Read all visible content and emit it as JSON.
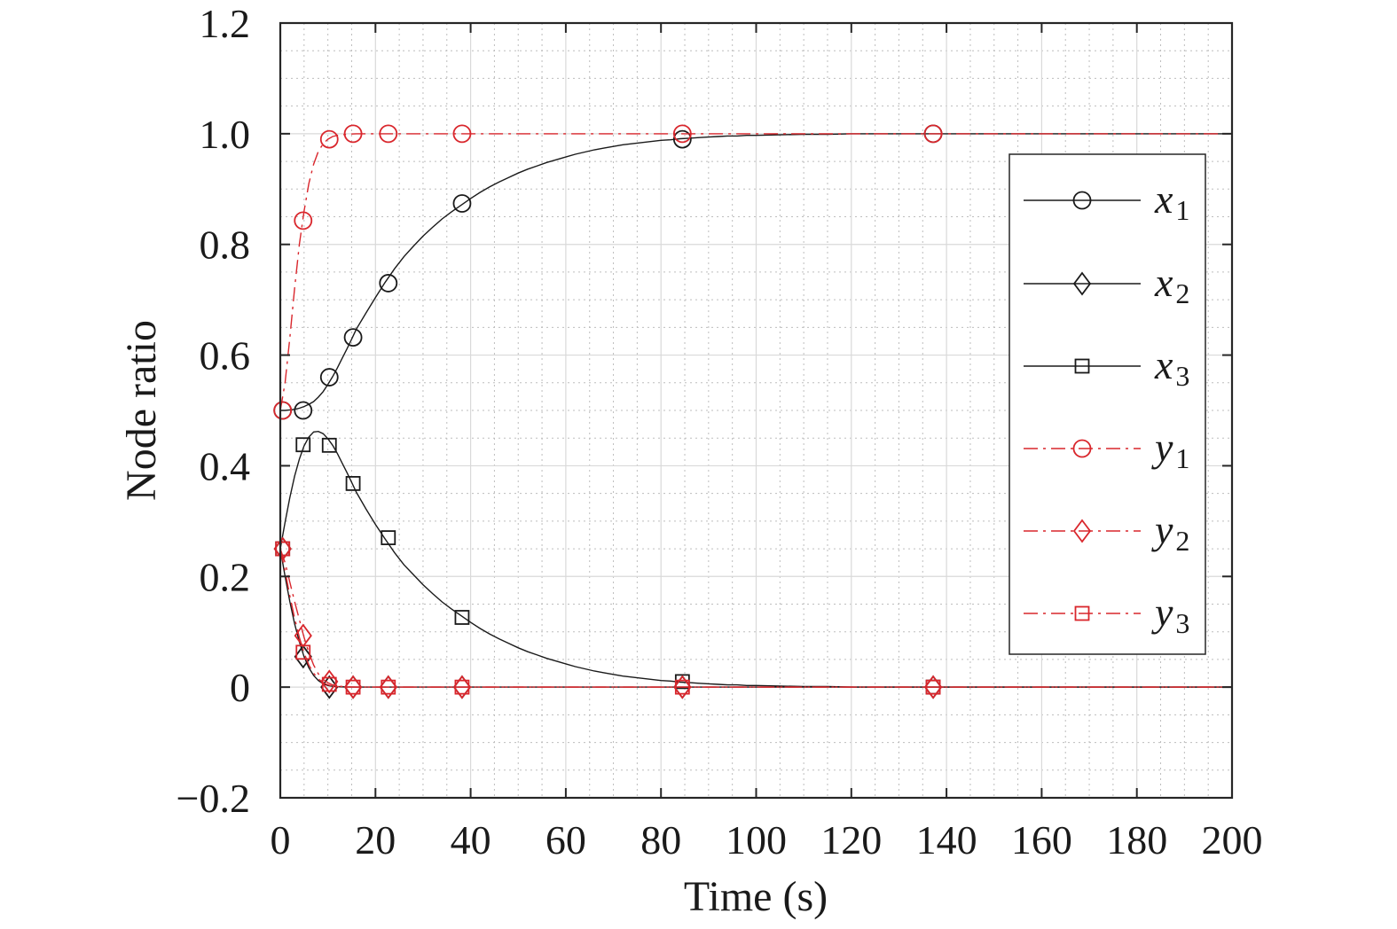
{
  "chart_data": {
    "type": "line",
    "title": "",
    "xlabel": "Time (s)",
    "ylabel": "Node ratio",
    "xlim": [
      0,
      200
    ],
    "ylim": [
      -0.2,
      1.2
    ],
    "xticks": [
      0,
      20,
      40,
      60,
      80,
      100,
      120,
      140,
      160,
      180,
      200
    ],
    "yticks": [
      -0.2,
      0,
      0.2,
      0.4,
      0.6,
      0.8,
      1.0,
      1.2
    ],
    "ytick_labels": [
      "−0.2",
      "0",
      "0.2",
      "0.4",
      "0.6",
      "0.8",
      "1.0",
      "1.2"
    ],
    "grid": true,
    "minor_grid": true,
    "legend_position": "right",
    "series": [
      {
        "name": "x1",
        "legend_base": "x",
        "legend_sub": "1",
        "color": "#1a1a1a",
        "dash": "solid",
        "marker": "circle",
        "x": [
          0,
          1,
          2,
          3,
          4,
          5,
          6,
          7,
          8,
          9,
          10,
          11,
          12,
          13,
          14,
          15,
          16,
          18,
          20,
          22,
          24,
          26,
          28,
          30,
          32,
          34,
          36,
          38,
          40,
          42,
          44,
          46,
          48,
          50,
          52,
          54,
          56,
          58,
          60,
          62,
          64,
          66,
          68,
          70,
          72,
          74,
          76,
          78,
          80,
          82,
          84,
          86,
          88,
          90,
          92,
          94,
          96,
          98,
          100,
          105,
          110,
          115,
          120,
          130,
          140,
          150,
          160,
          170,
          180,
          190,
          200
        ],
        "values": [
          0.5,
          0.5,
          0.501,
          0.502,
          0.504,
          0.507,
          0.511,
          0.516,
          0.524,
          0.534,
          0.547,
          0.561,
          0.577,
          0.594,
          0.611,
          0.629,
          0.647,
          0.676,
          0.704,
          0.731,
          0.756,
          0.778,
          0.797,
          0.815,
          0.831,
          0.846,
          0.859,
          0.871,
          0.883,
          0.894,
          0.904,
          0.913,
          0.921,
          0.929,
          0.936,
          0.942,
          0.948,
          0.953,
          0.958,
          0.963,
          0.967,
          0.971,
          0.974,
          0.977,
          0.98,
          0.982,
          0.984,
          0.986,
          0.988,
          0.989,
          0.991,
          0.992,
          0.993,
          0.994,
          0.995,
          0.996,
          0.996,
          0.997,
          0.997,
          0.998,
          0.999,
          0.999,
          1.0,
          1.0,
          1.0,
          1.0,
          1.0,
          1.0,
          1.0,
          1.0,
          1.0
        ],
        "marker_x": [
          0.5,
          4.8,
          10.3,
          15.3,
          22.7,
          38.2,
          84.5,
          137.2
        ],
        "marker_values": [
          0.5,
          0.5,
          0.56,
          0.632,
          0.73,
          0.874,
          0.99,
          1.0
        ]
      },
      {
        "name": "x2",
        "legend_base": "x",
        "legend_sub": "2",
        "color": "#1a1a1a",
        "dash": "solid",
        "marker": "diamond",
        "x": [
          0,
          1,
          2,
          3,
          4,
          5,
          6,
          7,
          8,
          9,
          10,
          11,
          12,
          14,
          16,
          20,
          30,
          50,
          100,
          150,
          200
        ],
        "values": [
          0.25,
          0.2,
          0.155,
          0.115,
          0.082,
          0.055,
          0.035,
          0.021,
          0.012,
          0.006,
          0.003,
          0.0015,
          0.0008,
          0.0002,
          0.0,
          0.0,
          0.0,
          0.0,
          0.0,
          0.0,
          0.0
        ],
        "marker_x": [
          0.5,
          4.8,
          10.3,
          15.3,
          22.7,
          38.2,
          84.5,
          137.2
        ],
        "marker_values": [
          0.25,
          0.055,
          0.0,
          0.0,
          0.0,
          0.0,
          0.0,
          0.0
        ]
      },
      {
        "name": "x3",
        "legend_base": "x",
        "legend_sub": "3",
        "color": "#1a1a1a",
        "dash": "solid",
        "marker": "square",
        "x": [
          0,
          1,
          2,
          3,
          4,
          5,
          6,
          7,
          8,
          9,
          10,
          11,
          12,
          13,
          14,
          15,
          16,
          18,
          20,
          22,
          24,
          26,
          28,
          30,
          32,
          34,
          36,
          38,
          40,
          42,
          44,
          46,
          48,
          50,
          52,
          54,
          56,
          58,
          60,
          62,
          64,
          66,
          68,
          70,
          72,
          74,
          76,
          78,
          80,
          82,
          84,
          86,
          88,
          90,
          92,
          94,
          96,
          98,
          100,
          105,
          110,
          115,
          120,
          130,
          140,
          150,
          160,
          170,
          180,
          190,
          200
        ],
        "values": [
          0.25,
          0.298,
          0.342,
          0.381,
          0.412,
          0.436,
          0.452,
          0.461,
          0.462,
          0.458,
          0.449,
          0.437,
          0.422,
          0.405,
          0.388,
          0.37,
          0.352,
          0.322,
          0.294,
          0.268,
          0.243,
          0.221,
          0.203,
          0.185,
          0.169,
          0.154,
          0.141,
          0.129,
          0.117,
          0.106,
          0.096,
          0.087,
          0.079,
          0.071,
          0.064,
          0.058,
          0.052,
          0.047,
          0.042,
          0.037,
          0.033,
          0.029,
          0.026,
          0.023,
          0.02,
          0.018,
          0.016,
          0.014,
          0.012,
          0.011,
          0.009,
          0.008,
          0.007,
          0.006,
          0.005,
          0.004,
          0.004,
          0.003,
          0.003,
          0.002,
          0.001,
          0.001,
          0.0,
          0.0,
          0.0,
          0.0,
          0.0,
          0.0,
          0.0,
          0.0,
          0.0
        ],
        "marker_x": [
          0.5,
          4.8,
          10.3,
          15.3,
          22.7,
          38.2,
          84.5,
          137.2
        ],
        "marker_values": [
          0.25,
          0.438,
          0.437,
          0.368,
          0.27,
          0.126,
          0.01,
          0.0
        ]
      },
      {
        "name": "y1",
        "legend_base": "y",
        "legend_sub": "1",
        "color": "#d9262c",
        "dash": "dashdot",
        "marker": "circle",
        "x": [
          0,
          1,
          2,
          3,
          4,
          5,
          6,
          7,
          8,
          9,
          10,
          11,
          12,
          14,
          16,
          20,
          30,
          50,
          100,
          150,
          200
        ],
        "values": [
          0.5,
          0.55,
          0.63,
          0.72,
          0.8,
          0.86,
          0.91,
          0.945,
          0.968,
          0.982,
          0.99,
          0.995,
          0.997,
          0.999,
          1.0,
          1.0,
          1.0,
          1.0,
          1.0,
          1.0,
          1.0
        ],
        "marker_x": [
          0.5,
          4.8,
          10.3,
          15.3,
          22.7,
          38.2,
          84.5,
          137.2
        ],
        "marker_values": [
          0.5,
          0.843,
          0.99,
          1.0,
          1.0,
          1.0,
          1.0,
          1.0
        ]
      },
      {
        "name": "y2",
        "legend_base": "y",
        "legend_sub": "2",
        "color": "#d9262c",
        "dash": "dashdot",
        "marker": "diamond",
        "x": [
          0,
          1,
          2,
          3,
          4,
          5,
          6,
          7,
          8,
          9,
          10,
          11,
          12,
          14,
          16,
          20,
          30,
          50,
          100,
          150,
          200
        ],
        "values": [
          0.25,
          0.225,
          0.19,
          0.155,
          0.122,
          0.09,
          0.062,
          0.04,
          0.024,
          0.014,
          0.008,
          0.004,
          0.002,
          0.0005,
          0.0,
          0.0,
          0.0,
          0.0,
          0.0,
          0.0,
          0.0
        ],
        "marker_x": [
          0.5,
          4.8,
          10.3,
          15.3,
          22.7,
          38.2,
          84.5,
          137.2
        ],
        "marker_values": [
          0.25,
          0.093,
          0.01,
          0.0,
          0.0,
          0.0,
          0.0,
          0.0
        ]
      },
      {
        "name": "y3",
        "legend_base": "y",
        "legend_sub": "3",
        "color": "#d9262c",
        "dash": "dashdot",
        "marker": "square",
        "x": [
          0,
          1,
          2,
          3,
          4,
          5,
          6,
          7,
          8,
          9,
          10,
          11,
          12,
          14,
          16,
          20,
          30,
          50,
          100,
          150,
          200
        ],
        "values": [
          0.25,
          0.21,
          0.165,
          0.125,
          0.09,
          0.062,
          0.04,
          0.025,
          0.015,
          0.008,
          0.004,
          0.002,
          0.001,
          0.0,
          0.0,
          0.0,
          0.0,
          0.0,
          0.0,
          0.0,
          0.0
        ],
        "marker_x": [
          0.5,
          4.8,
          10.3,
          15.3,
          22.7,
          38.2,
          84.5,
          137.2
        ],
        "marker_values": [
          0.25,
          0.063,
          0.005,
          0.0,
          0.0,
          0.0,
          0.0,
          0.0
        ]
      }
    ]
  }
}
